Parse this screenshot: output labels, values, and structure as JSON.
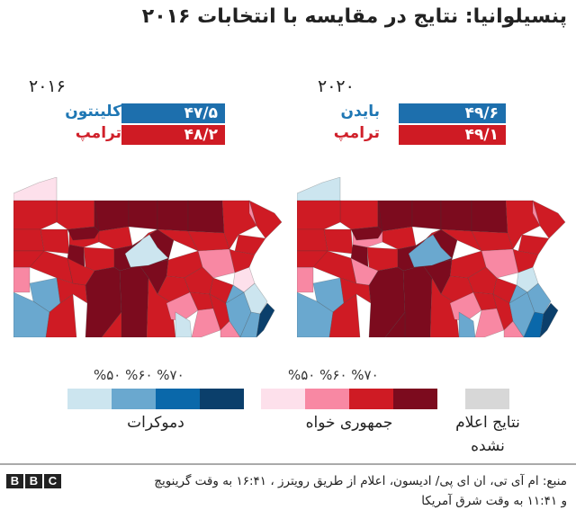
{
  "title": "پنسیلوانیا: نتایج در مقایسه با انتخابات ۲۰۱۶",
  "panels": [
    {
      "year": "۲۰۱۶",
      "dem": {
        "name": "کلینتون",
        "value": "۴۷/۵"
      },
      "rep": {
        "name": "ترامپ",
        "value": "۴۸/۲"
      }
    },
    {
      "year": "۲۰۲۰",
      "dem": {
        "name": "بایدن",
        "value": "۴۹/۶"
      },
      "rep": {
        "name": "ترامپ",
        "value": "۴۹/۱"
      }
    }
  ],
  "colors": {
    "dem_name": "#1f77b4",
    "rep_name": "#d0202a",
    "dem_bar": "#1d6fad",
    "rep_bar": "#cf1b24",
    "d1": "#cce5ef",
    "d2": "#6aa8cf",
    "d3": "#0a68aa",
    "d4": "#0b3f6b",
    "r1": "#fde0eb",
    "r2": "#f888a3",
    "r3": "#cf1b24",
    "r4": "#7c0b1e",
    "na": "#d7d7d7"
  },
  "legend": {
    "dem_scale": "%۵۰  %۶۰  %۷۰",
    "rep_scale": "%۵۰  %۶۰  %۷۰",
    "dem_label": "دموکرات",
    "rep_label": "جمهوری خواه",
    "na_label_1": "نتایج اعلام",
    "na_label_2": "نشده"
  },
  "footer": {
    "logo": [
      "B",
      "B",
      "C"
    ],
    "source_line1": "منبع: ام آی تی، ان ای پی/ ادیسون، اعلام از طریق رویترز ، ۱۶:۴۱ به وقت گرینویچ",
    "source_line2": "و ۱۱:۴۱ به وقت شرق آمریکا"
  },
  "chart_data": {
    "type": "choropleth",
    "title": "پنسیلوانیا: نتایج در مقایسه با انتخابات ۲۰۱۶",
    "maps": [
      {
        "year": 2016,
        "dem_candidate": "Clinton",
        "dem_pct": 47.5,
        "rep_candidate": "Trump",
        "rep_pct": 48.2
      },
      {
        "year": 2020,
        "dem_candidate": "Biden",
        "dem_pct": 49.6,
        "rep_candidate": "Trump",
        "rep_pct": 49.1
      }
    ],
    "legend_bins": [
      "<50%",
      "50-60%",
      "60-70%",
      ">70%"
    ],
    "legend_parties": [
      "Democrat",
      "Republican",
      "Results not declared"
    ]
  },
  "maps": {
    "y2016": [
      "r1",
      "r3",
      "r3",
      "r4",
      "r4",
      "r4",
      "r4",
      "r3",
      "r3",
      "r3",
      "r4",
      "r3",
      "r4",
      "r3",
      "r4",
      "r4",
      "r3",
      "r3",
      "r2",
      "d2",
      "r3",
      "d2",
      "r3",
      "r3",
      "r2",
      "r3",
      "r4",
      "r4",
      "r4",
      "d1",
      "r3",
      "r3",
      "r3",
      "r3",
      "r2",
      "d1",
      "r1",
      "r3",
      "r3",
      "r2",
      "r3",
      "r3",
      "r3",
      "r3",
      "r2",
      "d2",
      "d1",
      "d2",
      "d2",
      "d4",
      "r2",
      "r3",
      "r3",
      "r3",
      "r4",
      "r3"
    ],
    "y2020": [
      "d1",
      "r3",
      "r3",
      "r4",
      "r4",
      "r4",
      "r4",
      "r3",
      "r3",
      "r2",
      "r4",
      "r3",
      "r4",
      "r3",
      "r4",
      "r4",
      "r3",
      "r3",
      "r2",
      "d2",
      "r3",
      "d2",
      "r3",
      "r3",
      "r2",
      "r3",
      "r4",
      "r4",
      "r4",
      "d2",
      "r3",
      "r3",
      "r3",
      "r3",
      "r2",
      "d2",
      "d1",
      "r3",
      "r3",
      "r2",
      "r3",
      "r3",
      "r3",
      "r3",
      "r2",
      "d2",
      "d2",
      "d3",
      "d2",
      "d4",
      "r2",
      "r3",
      "r3",
      "r2",
      "r4",
      "r4"
    ]
  }
}
